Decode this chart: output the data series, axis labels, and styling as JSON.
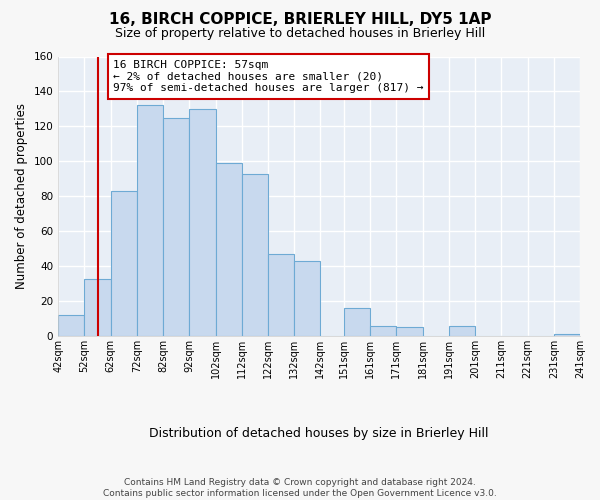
{
  "title": "16, BIRCH COPPICE, BRIERLEY HILL, DY5 1AP",
  "subtitle": "Size of property relative to detached houses in Brierley Hill",
  "xlabel": "Distribution of detached houses by size in Brierley Hill",
  "ylabel": "Number of detached properties",
  "bar_color": "#c8d9ee",
  "bar_edge_color": "#6eaad4",
  "plot_bg_color": "#e8eef6",
  "fig_bg_color": "#f7f7f7",
  "grid_color": "#ffffff",
  "bins": [
    42,
    52,
    62,
    72,
    82,
    92,
    102,
    112,
    122,
    132,
    142,
    151,
    161,
    171,
    181,
    191,
    201,
    211,
    221,
    231,
    241
  ],
  "counts": [
    12,
    33,
    83,
    132,
    125,
    130,
    99,
    93,
    47,
    43,
    0,
    16,
    6,
    5,
    0,
    6,
    0,
    0,
    0,
    1
  ],
  "vline_x": 57,
  "vline_color": "#cc0000",
  "annotation_text": "16 BIRCH COPPICE: 57sqm\n← 2% of detached houses are smaller (20)\n97% of semi-detached houses are larger (817) →",
  "annotation_box_color": "white",
  "annotation_box_edge": "#cc0000",
  "ylim": [
    0,
    160
  ],
  "tick_labels": [
    "42sqm",
    "52sqm",
    "62sqm",
    "72sqm",
    "82sqm",
    "92sqm",
    "102sqm",
    "112sqm",
    "122sqm",
    "132sqm",
    "142sqm",
    "151sqm",
    "161sqm",
    "171sqm",
    "181sqm",
    "191sqm",
    "201sqm",
    "211sqm",
    "221sqm",
    "231sqm",
    "241sqm"
  ],
  "footer": "Contains HM Land Registry data © Crown copyright and database right 2024.\nContains public sector information licensed under the Open Government Licence v3.0.",
  "title_fontsize": 11,
  "subtitle_fontsize": 9,
  "xlabel_fontsize": 9,
  "ylabel_fontsize": 8.5,
  "tick_fontsize": 7,
  "footer_fontsize": 6.5,
  "annotation_fontsize": 8
}
